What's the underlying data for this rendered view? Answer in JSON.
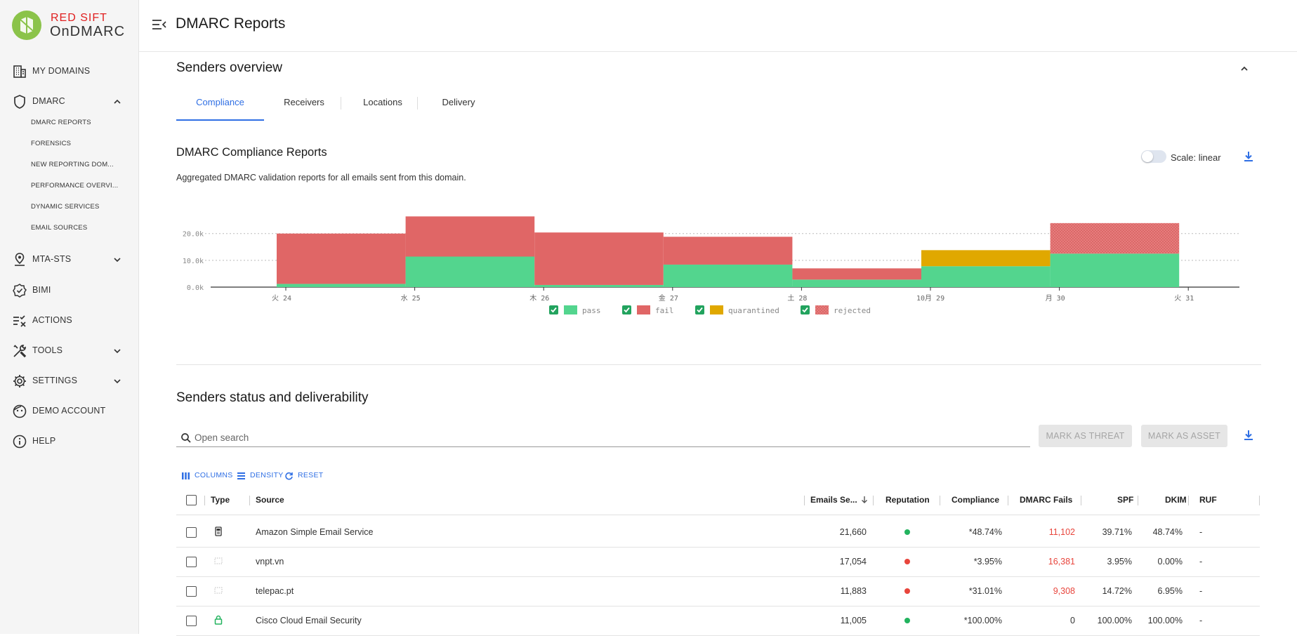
{
  "brand": {
    "top": "RED SIFT",
    "name": "OnDMARC"
  },
  "colors": {
    "accent": "#2f6fe4",
    "pass": "#53d58e",
    "fail": "#e06666",
    "quarantined": "#e0a800",
    "rejected": "#e88080",
    "good": "#22b35e",
    "bad": "#e8453c"
  },
  "sidebar": {
    "items": [
      {
        "label": "MY DOMAINS",
        "icon": "building-icon"
      },
      {
        "label": "DMARC",
        "icon": "shield-icon",
        "chevron": "chevron-up-icon"
      },
      {
        "label": "MTA-STS",
        "icon": "map-pin-icon",
        "chevron": "chevron-down-icon"
      },
      {
        "label": "BIMI",
        "icon": "badge-check-icon"
      },
      {
        "label": "ACTIONS",
        "icon": "checklist-icon"
      },
      {
        "label": "TOOLS",
        "icon": "tools-icon",
        "chevron": "chevron-down-icon"
      },
      {
        "label": "SETTINGS",
        "icon": "gear-icon",
        "chevron": "chevron-down-icon"
      },
      {
        "label": "DEMO ACCOUNT",
        "icon": "face-icon"
      },
      {
        "label": "HELP",
        "icon": "info-icon"
      }
    ],
    "subitems": [
      "DMARC REPORTS",
      "FORENSICS",
      "NEW REPORTING DOM...",
      "PERFORMANCE OVERVI...",
      "DYNAMIC SERVICES",
      "EMAIL SOURCES"
    ]
  },
  "header": {
    "title": "DMARC Reports"
  },
  "overview": {
    "title": "Senders overview",
    "tabs": [
      "Compliance",
      "Receivers",
      "Locations",
      "Delivery"
    ],
    "active_tab": "Compliance"
  },
  "compliance": {
    "title": "DMARC Compliance Reports",
    "subtitle": "Aggregated DMARC validation reports for all emails sent from this domain.",
    "scale_label": "Scale: linear"
  },
  "chart_data": {
    "type": "bar",
    "stacked": true,
    "categories": [
      "火 24",
      "水 25",
      "木 26",
      "金 27",
      "土 28",
      "10月 29",
      "月 30"
    ],
    "x_ticks": [
      "火 24",
      "水 25",
      "木 26",
      "金 27",
      "土 28",
      "10月 29",
      "月 30",
      "火 31"
    ],
    "y_ticks": [
      "0.0k",
      "10.0k",
      "20.0k"
    ],
    "ylim": [
      0,
      27000
    ],
    "series": [
      {
        "name": "pass",
        "values": [
          1200,
          11400,
          800,
          8400,
          2800,
          7800,
          12500
        ]
      },
      {
        "name": "fail",
        "values": [
          18800,
          15000,
          19600,
          10400,
          4200,
          0,
          0
        ]
      },
      {
        "name": "quarantined",
        "values": [
          0,
          0,
          0,
          0,
          0,
          6000,
          0
        ]
      },
      {
        "name": "rejected",
        "values": [
          0,
          0,
          0,
          0,
          0,
          0,
          11400
        ]
      }
    ],
    "legend": [
      "pass",
      "fail",
      "quarantined",
      "rejected"
    ],
    "legend_position": "bottom",
    "grid": true
  },
  "senders": {
    "title": "Senders status and deliverability",
    "search_placeholder": "Open search",
    "mark_threat": "MARK AS THREAT",
    "mark_asset": "MARK AS ASSET",
    "toolbar": {
      "columns": "COLUMNS",
      "density": "DENSITY",
      "reset": "RESET"
    },
    "columns": [
      "Type",
      "Source",
      "Emails Se...",
      "Reputation",
      "Compliance",
      "DMARC Fails",
      "SPF",
      "DKIM",
      "RUF"
    ],
    "rows": [
      {
        "type_icon": "server-icon",
        "source": "Amazon Simple Email Service",
        "emails": "21,660",
        "reputation": "good",
        "compliance": "*48.74%",
        "fails": "11,102",
        "fails_red": true,
        "spf": "39.71%",
        "dkim": "48.74%",
        "ruf": "-"
      },
      {
        "type_icon": "dashed-square-icon",
        "source": "vnpt.vn",
        "emails": "17,054",
        "reputation": "bad",
        "compliance": "*3.95%",
        "fails": "16,381",
        "fails_red": true,
        "spf": "3.95%",
        "dkim": "0.00%",
        "ruf": "-"
      },
      {
        "type_icon": "dashed-square-icon",
        "source": "telepac.pt",
        "emails": "11,883",
        "reputation": "bad",
        "compliance": "*31.01%",
        "fails": "9,308",
        "fails_red": true,
        "spf": "14.72%",
        "dkim": "6.95%",
        "ruf": "-"
      },
      {
        "type_icon": "lock-icon",
        "source": "Cisco Cloud Email Security",
        "emails": "11,005",
        "reputation": "good",
        "compliance": "*100.00%",
        "fails": "0",
        "fails_red": false,
        "spf": "100.00%",
        "dkim": "100.00%",
        "ruf": "-"
      }
    ]
  }
}
